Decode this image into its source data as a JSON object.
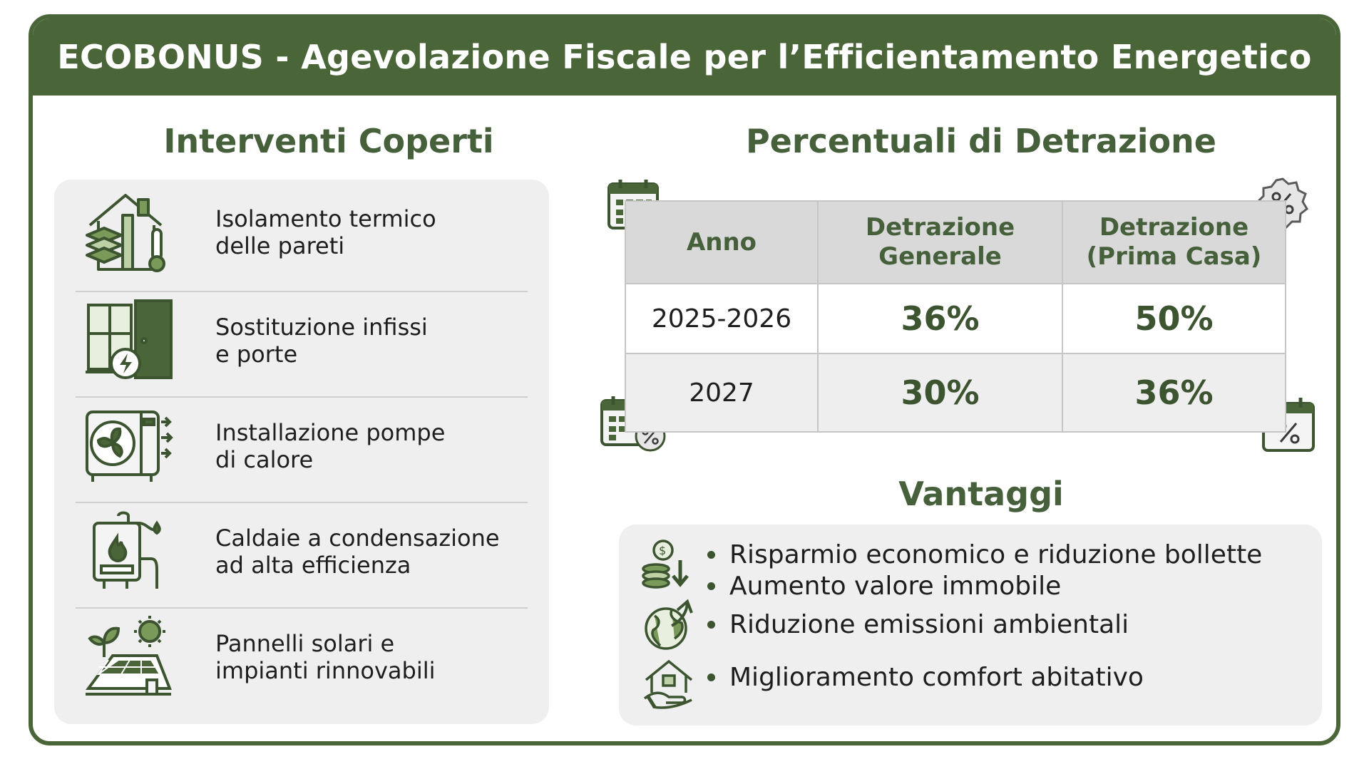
{
  "header": {
    "title": "ECOBONUS - Agevolazione Fiscale per l’Efficientamento Energetico"
  },
  "left": {
    "title": "Interventi Coperti",
    "items": [
      {
        "line1": "Isolamento termico",
        "line2": "delle pareti",
        "icon": "house-insulation-icon"
      },
      {
        "line1": "Sostituzione infissi",
        "line2": "e porte",
        "icon": "window-door-icon"
      },
      {
        "line1": "Installazione pompe",
        "line2": "di calore",
        "icon": "heat-pump-icon"
      },
      {
        "line1": "Caldaie a condensazione",
        "line2": "ad alta efficienza",
        "icon": "boiler-icon"
      },
      {
        "line1": "Pannelli solari e",
        "line2": "impianti rinnovabili",
        "icon": "solar-panel-icon"
      }
    ]
  },
  "right": {
    "title": "Percentuali di Detrazione",
    "table": {
      "headers": [
        "Anno",
        "Detrazione Generale",
        "Detrazione (Prima Casa)"
      ],
      "header_lines": [
        [
          "Anno"
        ],
        [
          "Detrazione",
          "Generale"
        ],
        [
          "Detrazione",
          "(Prima Casa)"
        ]
      ],
      "rows": [
        [
          "2025-2026",
          "36%",
          "50%"
        ],
        [
          "2027",
          "30%",
          "36%"
        ]
      ]
    }
  },
  "advantages": {
    "title": "Vantaggi",
    "items": [
      "Risparmio economico e riduzione bollette",
      "Aumento valore immobile",
      "Riduzione emissioni ambientali",
      "Miglioramento comfort abitativo"
    ]
  },
  "colors": {
    "primary": "#4a6638",
    "title_text": "#45603a",
    "card_bg": "#efefef",
    "header_cell": "#d9d9d9"
  }
}
